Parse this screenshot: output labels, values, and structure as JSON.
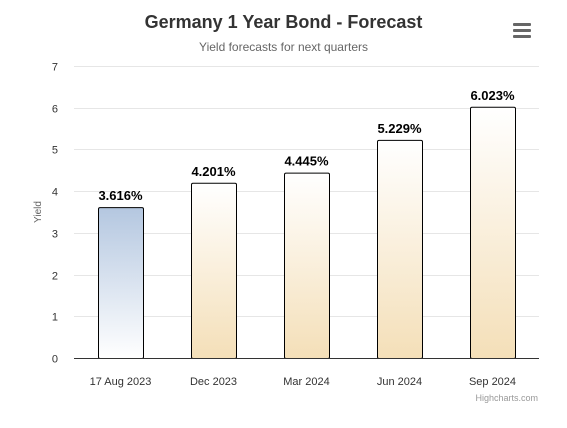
{
  "header": {
    "title": "Germany 1 Year Bond - Forecast",
    "subtitle": "Yield forecasts for next quarters",
    "menu_icon": "hamburger-menu-icon"
  },
  "credits": "Highcharts.com",
  "colors": {
    "current_top": "#b4c7e0",
    "current_bottom": "#ffffff",
    "forecast_top": "#ffffff",
    "forecast_bottom": "#f4dfb8",
    "bar_border": "#000000",
    "grid": "#e6e6e6"
  },
  "chart_data": {
    "type": "bar",
    "title": "Germany 1 Year Bond - Forecast",
    "subtitle": "Yield forecasts for next quarters",
    "xlabel": "",
    "ylabel": "Yield",
    "ylim": [
      0,
      7
    ],
    "yticks": [
      0,
      1,
      2,
      3,
      4,
      5,
      6,
      7
    ],
    "grid": true,
    "categories": [
      "17 Aug 2023",
      "Dec 2023",
      "Mar 2024",
      "Jun 2024",
      "Sep 2024"
    ],
    "values": [
      3.616,
      4.201,
      4.445,
      5.229,
      6.023
    ],
    "data_labels": [
      "3.616%",
      "4.201%",
      "4.445%",
      "5.229%",
      "6.023%"
    ]
  }
}
